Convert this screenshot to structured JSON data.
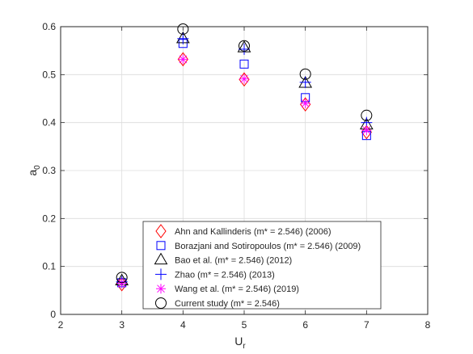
{
  "chart_data": {
    "type": "scatter",
    "title": "",
    "xlabel_main": "U",
    "xlabel_sub": "r",
    "ylabel_main": "a",
    "ylabel_sub": "0",
    "xlim": [
      2,
      8
    ],
    "ylim": [
      0,
      0.6
    ],
    "xticks": [
      "2",
      "3",
      "4",
      "5",
      "6",
      "7",
      "8"
    ],
    "yticks": [
      "0",
      "0.1",
      "0.2",
      "0.3",
      "0.4",
      "0.5",
      "0.6"
    ],
    "grid": true,
    "legend_position": "bottom-center",
    "series": [
      {
        "name": "Ahn and Kallinderis (m* = 2.546) (2006)",
        "marker": "diamond",
        "color": "#ff0000",
        "x": [
          3,
          4,
          5,
          6,
          7
        ],
        "y": [
          0.063,
          0.532,
          0.49,
          0.438,
          0.38
        ]
      },
      {
        "name": "Borazjani and Sotiropoulos (m* = 2.546) (2009)",
        "marker": "square",
        "color": "#0000ff",
        "x": [
          3,
          4,
          5,
          6,
          7
        ],
        "y": [
          0.066,
          0.565,
          0.522,
          0.452,
          0.373
        ]
      },
      {
        "name": "Bao et al. (m* = 2.546) (2012)",
        "marker": "triangle",
        "color": "#000000",
        "x": [
          3,
          4,
          5,
          6,
          7
        ],
        "y": [
          0.07,
          0.575,
          0.556,
          0.482,
          0.395
        ]
      },
      {
        "name": "Zhao (m* = 2.546) (2013)",
        "marker": "plus",
        "color": "#0000ff",
        "x": [
          3,
          4,
          5,
          6,
          7
        ],
        "y": [
          0.068,
          0.575,
          0.553,
          0.484,
          0.4
        ]
      },
      {
        "name": "Wang et al. (m* = 2.546) (2019)",
        "marker": "asterisk",
        "color": "#ff00ff",
        "x": [
          3,
          4,
          5,
          6,
          7
        ],
        "y": [
          0.065,
          0.532,
          0.491,
          0.44,
          0.384
        ]
      },
      {
        "name": "Current study (m* = 2.546)",
        "marker": "circle",
        "color": "#000000",
        "x": [
          3,
          4,
          5,
          6,
          7
        ],
        "y": [
          0.077,
          0.595,
          0.56,
          0.501,
          0.415
        ]
      }
    ]
  }
}
